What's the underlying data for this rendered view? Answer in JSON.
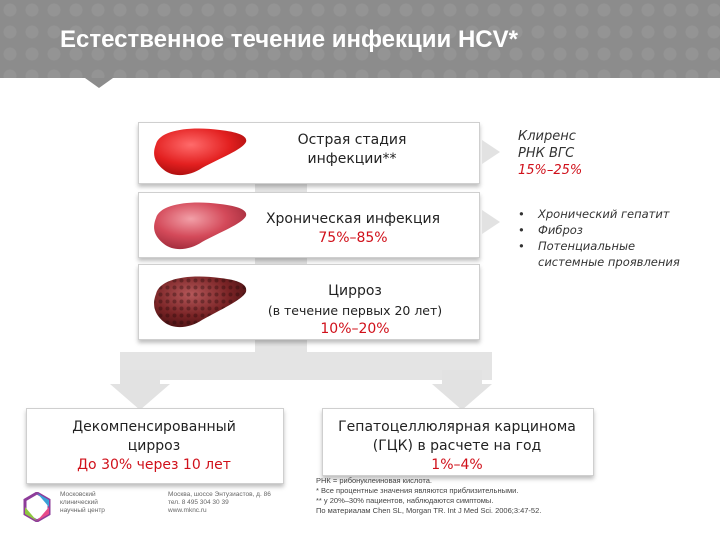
{
  "header": {
    "title": "Естественное течение инфекции HCV*"
  },
  "stages": [
    {
      "line1": "Острая стадия",
      "line2": "инфекции**",
      "value": ""
    },
    {
      "line1": "Хроническая инфекция",
      "line2": "",
      "value": "75%–85%"
    },
    {
      "line1": "Цирроз",
      "line2": "(в течение первых 20 лет)",
      "value": "10%–20%"
    }
  ],
  "clearance": {
    "line1": "Клиренс",
    "line2": "РНК ВГС",
    "value": "15%–25%"
  },
  "chronic_outcomes": [
    "Хронический гепатит",
    "Фиброз",
    "Потенциальные системные проявления"
  ],
  "outcomes": {
    "decompensated": {
      "line1": "Декомпенсированный",
      "line2": "цирроз",
      "value": "До 30% через 10 лет"
    },
    "hcc": {
      "line1": "Гепатоцеллюлярная карцинома",
      "line2": "(ГЦК) в расчете на год",
      "value": "1%–4%"
    }
  },
  "footnotes": [
    "РНК = рибонуклеиновая кислота.",
    "* Все процентные значения являются приблизительными.",
    "** у 20%–30% пациентов, наблюдаются симптомы.",
    "По материалам Chen SL, Morgan TR. Int J Med Sci. 2006;3:47-52."
  ],
  "footer": {
    "org_lines": [
      "Московский",
      "клинический",
      "научный центр"
    ],
    "contact_lines": [
      "Москва, шоссе Энтузиастов, д. 86",
      "тел. 8 495 304 30 39",
      "www.mknc.ru"
    ]
  },
  "colors": {
    "accent_red": "#d0101a",
    "header_gray": "#8c8c8c"
  }
}
